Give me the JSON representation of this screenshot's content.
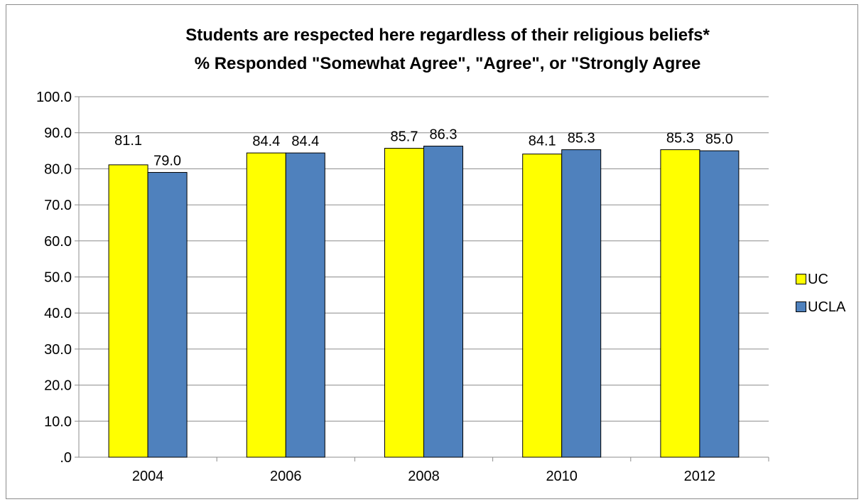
{
  "chart_data": {
    "type": "bar",
    "title": "Students are respected here regardless of their religious beliefs*",
    "subtitle": "% Responded \"Somewhat Agree\", \"Agree\", or \"Strongly Agree",
    "categories": [
      "2004",
      "2006",
      "2008",
      "2010",
      "2012"
    ],
    "series": [
      {
        "name": "UC",
        "values": [
          81.1,
          84.4,
          85.7,
          84.1,
          85.3
        ],
        "color": "#ffff00"
      },
      {
        "name": "UCLA",
        "values": [
          79.0,
          84.4,
          86.3,
          85.3,
          85.0
        ],
        "color": "#4f81bd"
      }
    ],
    "ylim": [
      0,
      100
    ],
    "yticks": [
      ".0",
      "10.0",
      "20.0",
      "30.0",
      "40.0",
      "50.0",
      "60.0",
      "70.0",
      "80.0",
      "90.0",
      "100.0"
    ],
    "grid": true,
    "legend_position": "right"
  }
}
